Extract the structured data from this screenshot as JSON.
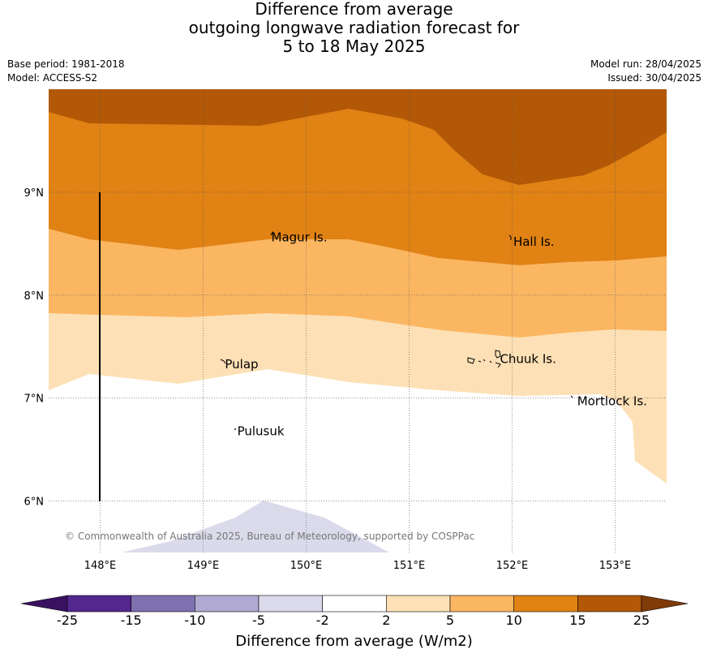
{
  "title": {
    "line1": "Difference from average",
    "line2": "outgoing longwave radiation forecast for",
    "line3": "5 to 18 May 2025"
  },
  "meta": {
    "base_period": "Base period: 1981-2018",
    "model": "Model: ACCESS-S2",
    "model_run": "Model run: 28/04/2025",
    "issued": "Issued: 30/04/2025"
  },
  "map": {
    "lon_range": [
      147.5,
      153.5
    ],
    "lat_range": [
      5.5,
      10.0
    ],
    "lon_ticks": [
      "148°E",
      "149°E",
      "150°E",
      "151°E",
      "152°E",
      "153°E"
    ],
    "lat_ticks": [
      "9°N",
      "8°N",
      "7°N",
      "6°N"
    ],
    "places": [
      {
        "name": "Magur Is.",
        "lon": 149.63,
        "lat": 8.56
      },
      {
        "name": "Hall Is.",
        "lon": 151.98,
        "lat": 8.52
      },
      {
        "name": "Pulap",
        "lon": 149.18,
        "lat": 7.33
      },
      {
        "name": "Chuuk Is.",
        "lon": 151.85,
        "lat": 7.38
      },
      {
        "name": "Mortlock Is.",
        "lon": 152.6,
        "lat": 6.97
      },
      {
        "name": "Pulusuk",
        "lon": 149.3,
        "lat": 6.68
      }
    ],
    "copyright": "© Commonwealth of Australia 2025, Bureau of Meteorology, supported by COSPPac"
  },
  "colorbar": {
    "title": "Difference from average (W/m2)",
    "labels": [
      "-25",
      "-15",
      "-10",
      "-5",
      "-2",
      "2",
      "5",
      "10",
      "15",
      "25"
    ],
    "colors": [
      "#3a1160",
      "#54278f",
      "#7f71b0",
      "#b0aad3",
      "#dadaeb",
      "#ffffff",
      "#fde0b5",
      "#fbb662",
      "#e08214",
      "#b35806",
      "#7f3b08"
    ],
    "extend": "both"
  }
}
